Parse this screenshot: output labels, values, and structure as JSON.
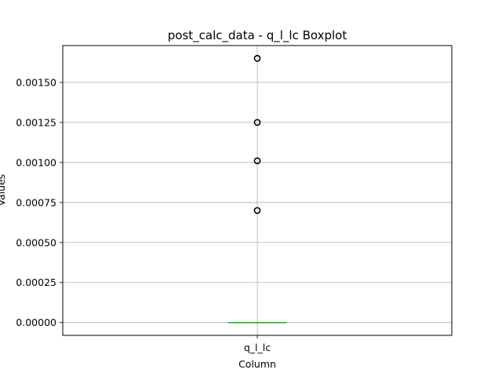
{
  "chart_data": {
    "type": "boxplot",
    "title": "post_calc_data - q_l_lc Boxplot",
    "xlabel": "Column",
    "ylabel": "Values",
    "categories": [
      "q_l_lc"
    ],
    "ylim": [
      -8e-05,
      0.00173
    ],
    "yticks": [
      0.0,
      0.00025,
      0.0005,
      0.00075,
      0.001,
      0.00125,
      0.0015
    ],
    "ytick_labels": [
      "0.00000",
      "0.00025",
      "0.00050",
      "0.00075",
      "0.00100",
      "0.00125",
      "0.00150"
    ],
    "grid": true,
    "boxes": [
      {
        "category": "q_l_lc",
        "whisker_low": 0.0,
        "q1": 0.0,
        "median": 0.0,
        "q3": 0.0,
        "whisker_high": 0.0,
        "outliers": [
          0.0007,
          0.00101,
          0.00125,
          0.00165
        ]
      }
    ],
    "colors": {
      "median": "#2ca02c",
      "box": "#1f77b4",
      "grid": "#b0b0b0",
      "outlier": "#000000"
    }
  }
}
